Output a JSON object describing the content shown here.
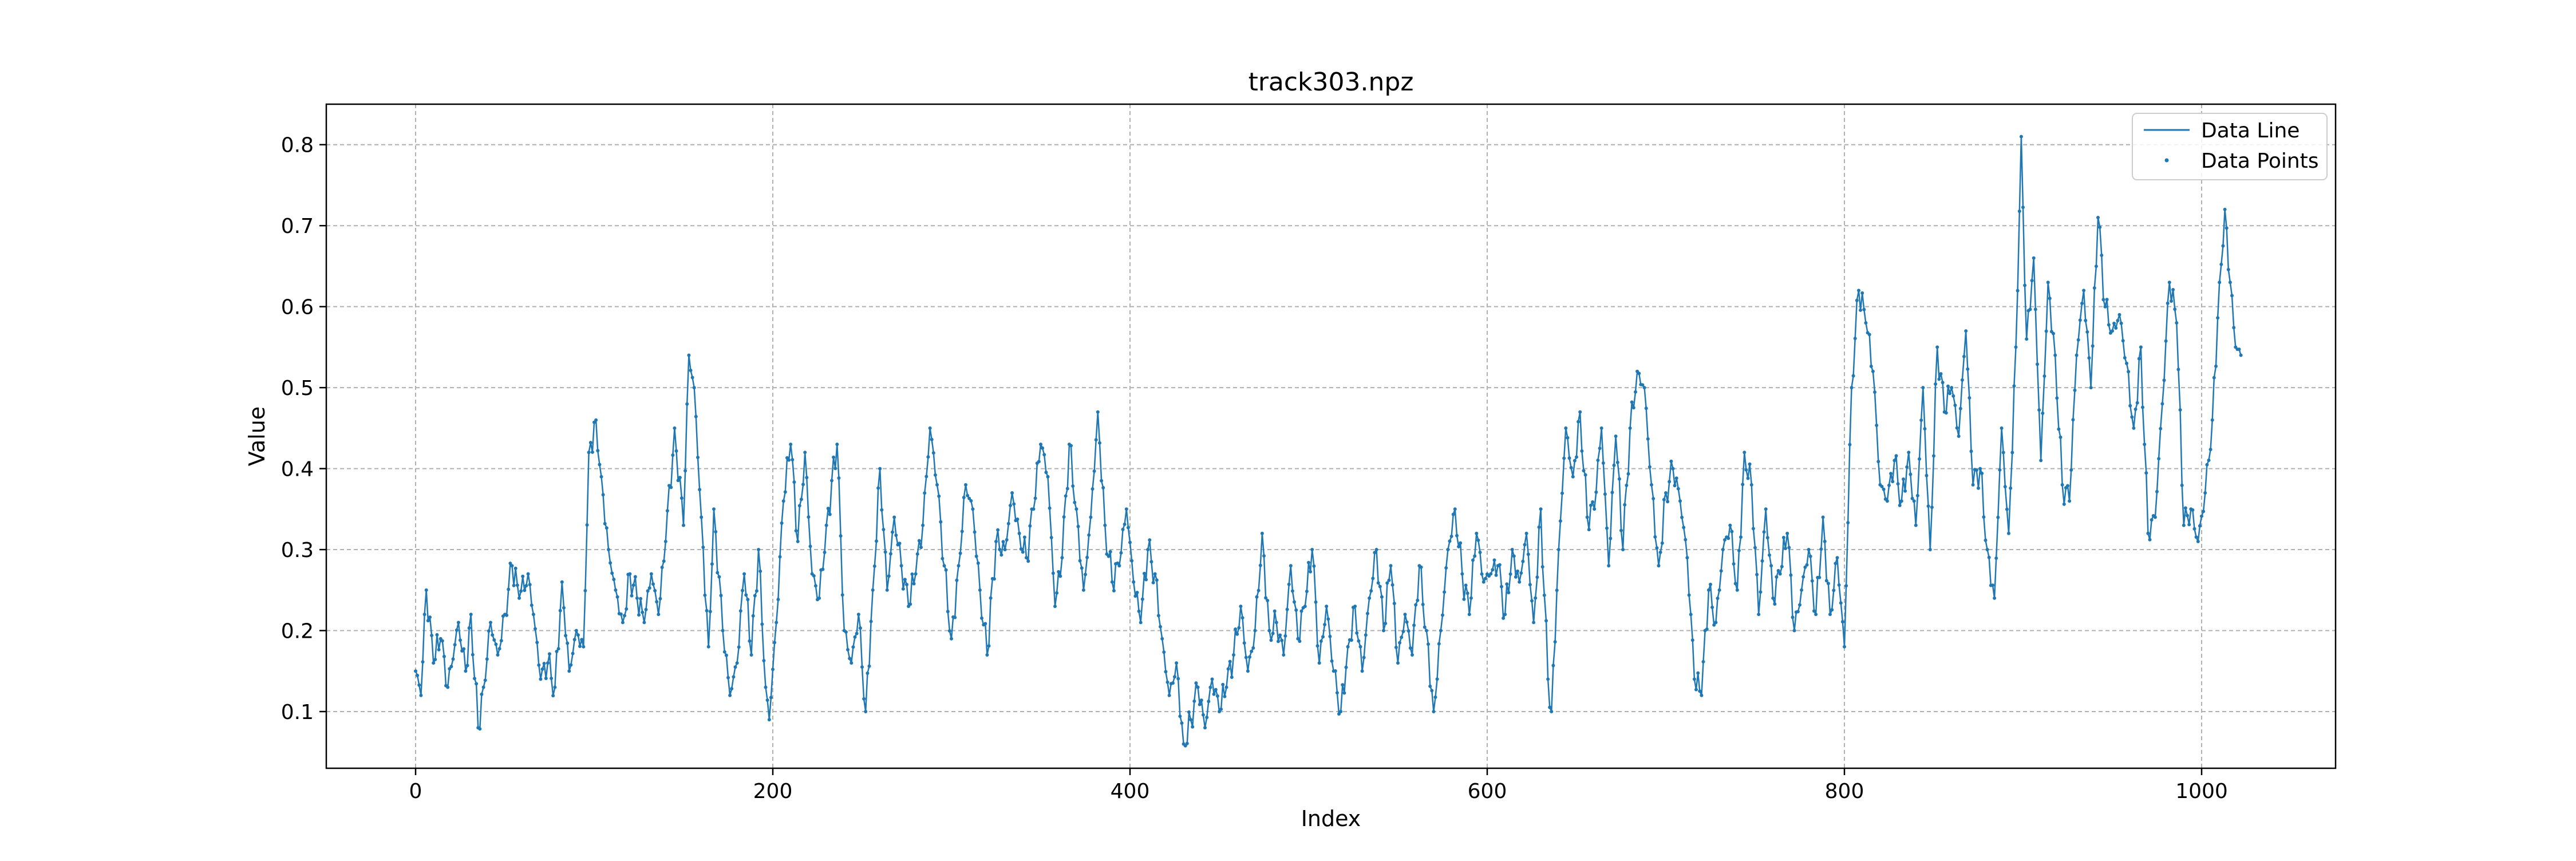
{
  "chart_data": {
    "type": "line",
    "title": "track303.npz",
    "xlabel": "Index",
    "ylabel": "Value",
    "xlim": [
      -50,
      1075
    ],
    "ylim": [
      0.03,
      0.85
    ],
    "xticks": [
      0,
      200,
      400,
      600,
      800,
      1000
    ],
    "yticks": [
      0.1,
      0.2,
      0.3,
      0.4,
      0.5,
      0.6,
      0.7,
      0.8
    ],
    "grid": true,
    "legend": {
      "placement": "top-right",
      "entries": [
        "Data Line",
        "Data Points"
      ]
    },
    "colors": {
      "series": "#1f77b4"
    },
    "series": [
      {
        "name": "Data Line",
        "style": "line"
      },
      {
        "name": "Data Points",
        "style": "markers"
      }
    ],
    "anchor_points": [
      [
        0,
        0.15
      ],
      [
        3,
        0.12
      ],
      [
        6,
        0.25
      ],
      [
        10,
        0.16
      ],
      [
        14,
        0.19
      ],
      [
        18,
        0.13
      ],
      [
        24,
        0.21
      ],
      [
        28,
        0.15
      ],
      [
        31,
        0.22
      ],
      [
        35,
        0.08
      ],
      [
        38,
        0.13
      ],
      [
        42,
        0.21
      ],
      [
        46,
        0.17
      ],
      [
        50,
        0.22
      ],
      [
        54,
        0.28
      ],
      [
        58,
        0.24
      ],
      [
        63,
        0.27
      ],
      [
        66,
        0.22
      ],
      [
        70,
        0.14
      ],
      [
        74,
        0.16
      ],
      [
        78,
        0.13
      ],
      [
        82,
        0.26
      ],
      [
        86,
        0.15
      ],
      [
        90,
        0.2
      ],
      [
        94,
        0.18
      ],
      [
        97,
        0.42
      ],
      [
        101,
        0.46
      ],
      [
        104,
        0.39
      ],
      [
        108,
        0.3
      ],
      [
        112,
        0.25
      ],
      [
        116,
        0.21
      ],
      [
        120,
        0.27
      ],
      [
        124,
        0.24
      ],
      [
        128,
        0.21
      ],
      [
        132,
        0.27
      ],
      [
        136,
        0.22
      ],
      [
        140,
        0.31
      ],
      [
        145,
        0.45
      ],
      [
        150,
        0.33
      ],
      [
        153,
        0.54
      ],
      [
        156,
        0.5
      ],
      [
        160,
        0.34
      ],
      [
        164,
        0.18
      ],
      [
        167,
        0.35
      ],
      [
        172,
        0.2
      ],
      [
        176,
        0.12
      ],
      [
        180,
        0.16
      ],
      [
        184,
        0.27
      ],
      [
        188,
        0.17
      ],
      [
        192,
        0.3
      ],
      [
        196,
        0.13
      ],
      [
        198,
        0.09
      ],
      [
        202,
        0.21
      ],
      [
        206,
        0.36
      ],
      [
        210,
        0.43
      ],
      [
        214,
        0.31
      ],
      [
        218,
        0.42
      ],
      [
        222,
        0.27
      ],
      [
        226,
        0.24
      ],
      [
        230,
        0.33
      ],
      [
        236,
        0.43
      ],
      [
        240,
        0.2
      ],
      [
        244,
        0.16
      ],
      [
        248,
        0.22
      ],
      [
        252,
        0.1
      ],
      [
        256,
        0.25
      ],
      [
        260,
        0.4
      ],
      [
        264,
        0.25
      ],
      [
        268,
        0.34
      ],
      [
        272,
        0.28
      ],
      [
        276,
        0.23
      ],
      [
        280,
        0.27
      ],
      [
        284,
        0.33
      ],
      [
        288,
        0.45
      ],
      [
        292,
        0.38
      ],
      [
        296,
        0.28
      ],
      [
        300,
        0.19
      ],
      [
        304,
        0.28
      ],
      [
        308,
        0.38
      ],
      [
        312,
        0.35
      ],
      [
        316,
        0.25
      ],
      [
        320,
        0.17
      ],
      [
        325,
        0.31
      ],
      [
        330,
        0.3
      ],
      [
        334,
        0.37
      ],
      [
        338,
        0.32
      ],
      [
        342,
        0.29
      ],
      [
        346,
        0.35
      ],
      [
        350,
        0.43
      ],
      [
        354,
        0.39
      ],
      [
        358,
        0.23
      ],
      [
        362,
        0.29
      ],
      [
        366,
        0.43
      ],
      [
        370,
        0.35
      ],
      [
        374,
        0.25
      ],
      [
        378,
        0.34
      ],
      [
        382,
        0.47
      ],
      [
        386,
        0.33
      ],
      [
        390,
        0.26
      ],
      [
        394,
        0.28
      ],
      [
        398,
        0.35
      ],
      [
        402,
        0.26
      ],
      [
        406,
        0.21
      ],
      [
        410,
        0.3
      ],
      [
        414,
        0.27
      ],
      [
        418,
        0.19
      ],
      [
        422,
        0.12
      ],
      [
        426,
        0.16
      ],
      [
        430,
        0.06
      ],
      [
        434,
        0.09
      ],
      [
        438,
        0.13
      ],
      [
        442,
        0.08
      ],
      [
        446,
        0.14
      ],
      [
        450,
        0.1
      ],
      [
        454,
        0.13
      ],
      [
        458,
        0.17
      ],
      [
        462,
        0.23
      ],
      [
        466,
        0.15
      ],
      [
        470,
        0.2
      ],
      [
        474,
        0.32
      ],
      [
        478,
        0.2
      ],
      [
        482,
        0.21
      ],
      [
        486,
        0.17
      ],
      [
        490,
        0.28
      ],
      [
        494,
        0.19
      ],
      [
        498,
        0.23
      ],
      [
        502,
        0.3
      ],
      [
        506,
        0.16
      ],
      [
        510,
        0.23
      ],
      [
        514,
        0.15
      ],
      [
        518,
        0.1
      ],
      [
        522,
        0.18
      ],
      [
        526,
        0.23
      ],
      [
        530,
        0.15
      ],
      [
        534,
        0.24
      ],
      [
        538,
        0.3
      ],
      [
        542,
        0.2
      ],
      [
        546,
        0.28
      ],
      [
        550,
        0.16
      ],
      [
        554,
        0.22
      ],
      [
        558,
        0.17
      ],
      [
        562,
        0.28
      ],
      [
        566,
        0.2
      ],
      [
        570,
        0.1
      ],
      [
        574,
        0.2
      ],
      [
        578,
        0.3
      ],
      [
        582,
        0.35
      ],
      [
        586,
        0.27
      ],
      [
        590,
        0.22
      ],
      [
        594,
        0.32
      ],
      [
        598,
        0.26
      ],
      [
        602,
        0.27
      ],
      [
        606,
        0.28
      ],
      [
        610,
        0.22
      ],
      [
        614,
        0.3
      ],
      [
        618,
        0.26
      ],
      [
        622,
        0.32
      ],
      [
        626,
        0.21
      ],
      [
        630,
        0.35
      ],
      [
        634,
        0.14
      ],
      [
        636,
        0.1
      ],
      [
        640,
        0.3
      ],
      [
        644,
        0.45
      ],
      [
        648,
        0.39
      ],
      [
        652,
        0.47
      ],
      [
        656,
        0.34
      ],
      [
        660,
        0.35
      ],
      [
        664,
        0.45
      ],
      [
        668,
        0.28
      ],
      [
        672,
        0.44
      ],
      [
        676,
        0.3
      ],
      [
        680,
        0.45
      ],
      [
        684,
        0.52
      ],
      [
        688,
        0.5
      ],
      [
        692,
        0.38
      ],
      [
        696,
        0.28
      ],
      [
        700,
        0.37
      ],
      [
        704,
        0.4
      ],
      [
        708,
        0.36
      ],
      [
        712,
        0.29
      ],
      [
        716,
        0.14
      ],
      [
        720,
        0.12
      ],
      [
        724,
        0.25
      ],
      [
        728,
        0.21
      ],
      [
        732,
        0.3
      ],
      [
        736,
        0.33
      ],
      [
        740,
        0.25
      ],
      [
        744,
        0.42
      ],
      [
        748,
        0.38
      ],
      [
        752,
        0.22
      ],
      [
        756,
        0.35
      ],
      [
        760,
        0.24
      ],
      [
        764,
        0.27
      ],
      [
        768,
        0.32
      ],
      [
        772,
        0.2
      ],
      [
        776,
        0.25
      ],
      [
        780,
        0.3
      ],
      [
        784,
        0.22
      ],
      [
        788,
        0.34
      ],
      [
        792,
        0.22
      ],
      [
        796,
        0.29
      ],
      [
        800,
        0.18
      ],
      [
        804,
        0.5
      ],
      [
        808,
        0.62
      ],
      [
        812,
        0.58
      ],
      [
        816,
        0.52
      ],
      [
        820,
        0.38
      ],
      [
        824,
        0.36
      ],
      [
        828,
        0.41
      ],
      [
        832,
        0.36
      ],
      [
        836,
        0.42
      ],
      [
        840,
        0.33
      ],
      [
        844,
        0.5
      ],
      [
        848,
        0.3
      ],
      [
        852,
        0.55
      ],
      [
        856,
        0.47
      ],
      [
        860,
        0.5
      ],
      [
        864,
        0.44
      ],
      [
        868,
        0.57
      ],
      [
        872,
        0.38
      ],
      [
        876,
        0.4
      ],
      [
        880,
        0.3
      ],
      [
        884,
        0.24
      ],
      [
        888,
        0.45
      ],
      [
        892,
        0.32
      ],
      [
        896,
        0.55
      ],
      [
        899,
        0.81
      ],
      [
        902,
        0.56
      ],
      [
        906,
        0.66
      ],
      [
        910,
        0.41
      ],
      [
        914,
        0.63
      ],
      [
        918,
        0.54
      ],
      [
        922,
        0.38
      ],
      [
        926,
        0.36
      ],
      [
        930,
        0.54
      ],
      [
        934,
        0.62
      ],
      [
        938,
        0.5
      ],
      [
        942,
        0.71
      ],
      [
        946,
        0.6
      ],
      [
        950,
        0.57
      ],
      [
        954,
        0.59
      ],
      [
        958,
        0.53
      ],
      [
        962,
        0.45
      ],
      [
        966,
        0.55
      ],
      [
        970,
        0.32
      ],
      [
        974,
        0.34
      ],
      [
        978,
        0.48
      ],
      [
        982,
        0.63
      ],
      [
        986,
        0.58
      ],
      [
        990,
        0.33
      ],
      [
        994,
        0.35
      ],
      [
        998,
        0.31
      ],
      [
        1002,
        0.37
      ],
      [
        1006,
        0.46
      ],
      [
        1010,
        0.63
      ],
      [
        1013,
        0.72
      ],
      [
        1016,
        0.63
      ],
      [
        1019,
        0.55
      ],
      [
        1022,
        0.54
      ]
    ]
  }
}
